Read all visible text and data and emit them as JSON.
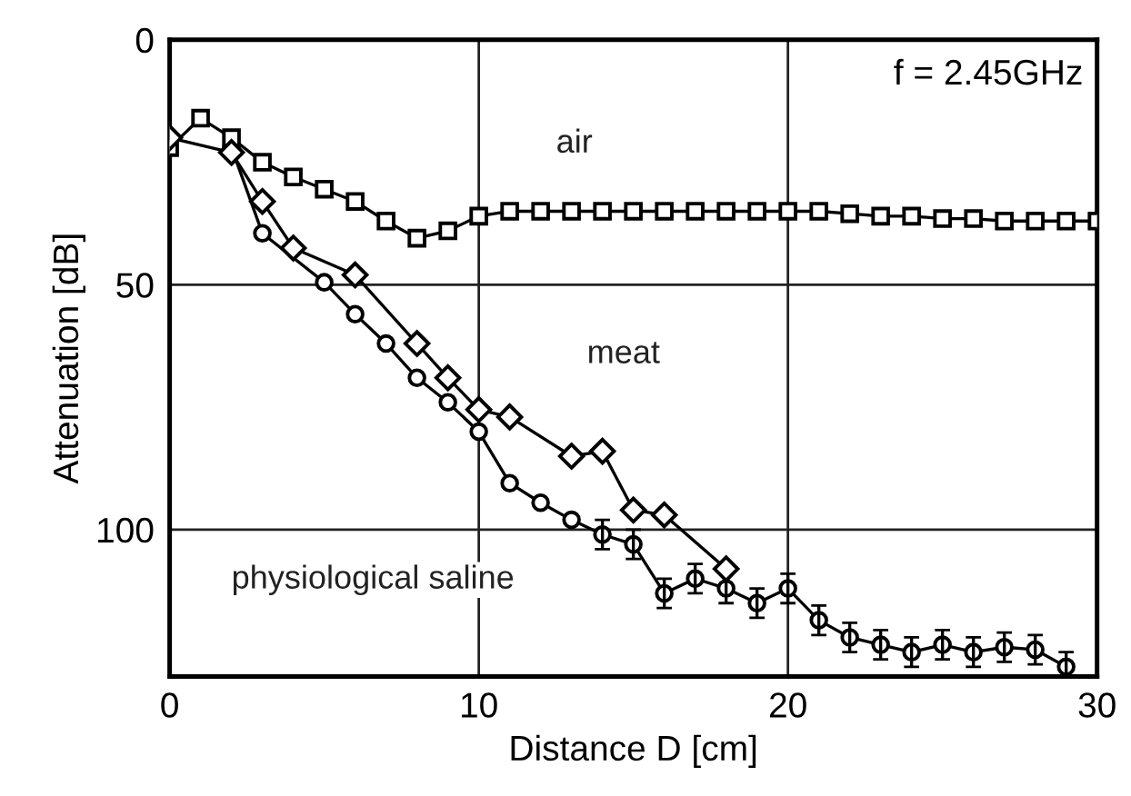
{
  "chart_data": {
    "type": "line",
    "xlabel": "Distance D [cm]",
    "ylabel": "Attenuation [dB]",
    "xlim": [
      0,
      30
    ],
    "ylim": [
      130,
      0
    ],
    "xticks": [
      0,
      10,
      20,
      30
    ],
    "yticks": [
      0,
      50,
      100
    ],
    "grid": true,
    "legend": false,
    "annotations": [
      "f = 2.45GHz"
    ],
    "series": [
      {
        "name": "air",
        "color": "#000000",
        "marker": "square",
        "x": [
          0,
          1,
          2,
          3,
          4,
          5,
          6,
          7,
          8,
          9,
          10,
          11,
          12,
          13,
          14,
          15,
          16,
          17,
          18,
          19,
          20,
          21,
          22,
          23,
          24,
          25,
          26,
          27,
          28,
          29,
          30
        ],
        "values": [
          22,
          16,
          20,
          25,
          28,
          30.5,
          33,
          37,
          40.5,
          39,
          36,
          35,
          35,
          35,
          35,
          35,
          35,
          35,
          35,
          35,
          35,
          35,
          35.5,
          36,
          36,
          36.5,
          36.5,
          37,
          37,
          37,
          37
        ]
      },
      {
        "name": "meat",
        "color": "#000000",
        "marker": "diamond",
        "x": [
          0,
          2,
          3,
          4,
          6,
          8,
          9,
          10,
          11,
          13,
          14,
          15,
          16,
          18
        ],
        "values": [
          20,
          23,
          33,
          42.5,
          48,
          62,
          69,
          75.5,
          77,
          85,
          84,
          96,
          97,
          108
        ]
      },
      {
        "name": "physiological saline",
        "color": "#000000",
        "marker": "circle",
        "x": [
          2,
          3,
          5,
          6,
          7,
          8,
          9,
          10,
          11,
          12,
          13,
          14,
          15,
          16,
          17,
          18,
          19,
          20,
          21,
          22,
          23,
          24,
          25,
          26,
          27,
          28,
          29
        ],
        "values": [
          22,
          39.5,
          49.5,
          56,
          62,
          69,
          74,
          80,
          90.5,
          94.5,
          98,
          101,
          103,
          113,
          110,
          112,
          115,
          112,
          118.5,
          122,
          123.5,
          125,
          123.5,
          125,
          124,
          124.5,
          128
        ],
        "errors": [
          null,
          null,
          null,
          null,
          null,
          null,
          null,
          null,
          null,
          null,
          null,
          3,
          3,
          3,
          3,
          3,
          3,
          3,
          3,
          3,
          3,
          3,
          3,
          3,
          3,
          3,
          3
        ]
      }
    ]
  }
}
